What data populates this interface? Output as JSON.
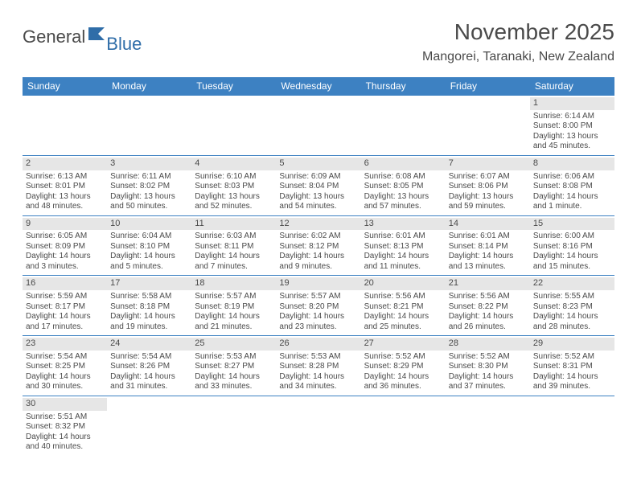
{
  "logo": {
    "text1": "General",
    "text2": "Blue"
  },
  "title": "November 2025",
  "location": "Mangorei, Taranaki, New Zealand",
  "colors": {
    "header_bg": "#3d81c2",
    "header_text": "#ffffff",
    "daynum_bg": "#e6e6e6",
    "text": "#4a4a4a",
    "logo_blue": "#2f6da8",
    "rule": "#3d81c2"
  },
  "day_headers": [
    "Sunday",
    "Monday",
    "Tuesday",
    "Wednesday",
    "Thursday",
    "Friday",
    "Saturday"
  ],
  "weeks": [
    [
      null,
      null,
      null,
      null,
      null,
      null,
      {
        "n": "1",
        "sr": "6:14 AM",
        "ss": "8:00 PM",
        "dl1": "13 hours",
        "dl2": "and 45 minutes."
      }
    ],
    [
      {
        "n": "2",
        "sr": "6:13 AM",
        "ss": "8:01 PM",
        "dl1": "13 hours",
        "dl2": "and 48 minutes."
      },
      {
        "n": "3",
        "sr": "6:11 AM",
        "ss": "8:02 PM",
        "dl1": "13 hours",
        "dl2": "and 50 minutes."
      },
      {
        "n": "4",
        "sr": "6:10 AM",
        "ss": "8:03 PM",
        "dl1": "13 hours",
        "dl2": "and 52 minutes."
      },
      {
        "n": "5",
        "sr": "6:09 AM",
        "ss": "8:04 PM",
        "dl1": "13 hours",
        "dl2": "and 54 minutes."
      },
      {
        "n": "6",
        "sr": "6:08 AM",
        "ss": "8:05 PM",
        "dl1": "13 hours",
        "dl2": "and 57 minutes."
      },
      {
        "n": "7",
        "sr": "6:07 AM",
        "ss": "8:06 PM",
        "dl1": "13 hours",
        "dl2": "and 59 minutes."
      },
      {
        "n": "8",
        "sr": "6:06 AM",
        "ss": "8:08 PM",
        "dl1": "14 hours",
        "dl2": "and 1 minute."
      }
    ],
    [
      {
        "n": "9",
        "sr": "6:05 AM",
        "ss": "8:09 PM",
        "dl1": "14 hours",
        "dl2": "and 3 minutes."
      },
      {
        "n": "10",
        "sr": "6:04 AM",
        "ss": "8:10 PM",
        "dl1": "14 hours",
        "dl2": "and 5 minutes."
      },
      {
        "n": "11",
        "sr": "6:03 AM",
        "ss": "8:11 PM",
        "dl1": "14 hours",
        "dl2": "and 7 minutes."
      },
      {
        "n": "12",
        "sr": "6:02 AM",
        "ss": "8:12 PM",
        "dl1": "14 hours",
        "dl2": "and 9 minutes."
      },
      {
        "n": "13",
        "sr": "6:01 AM",
        "ss": "8:13 PM",
        "dl1": "14 hours",
        "dl2": "and 11 minutes."
      },
      {
        "n": "14",
        "sr": "6:01 AM",
        "ss": "8:14 PM",
        "dl1": "14 hours",
        "dl2": "and 13 minutes."
      },
      {
        "n": "15",
        "sr": "6:00 AM",
        "ss": "8:16 PM",
        "dl1": "14 hours",
        "dl2": "and 15 minutes."
      }
    ],
    [
      {
        "n": "16",
        "sr": "5:59 AM",
        "ss": "8:17 PM",
        "dl1": "14 hours",
        "dl2": "and 17 minutes."
      },
      {
        "n": "17",
        "sr": "5:58 AM",
        "ss": "8:18 PM",
        "dl1": "14 hours",
        "dl2": "and 19 minutes."
      },
      {
        "n": "18",
        "sr": "5:57 AM",
        "ss": "8:19 PM",
        "dl1": "14 hours",
        "dl2": "and 21 minutes."
      },
      {
        "n": "19",
        "sr": "5:57 AM",
        "ss": "8:20 PM",
        "dl1": "14 hours",
        "dl2": "and 23 minutes."
      },
      {
        "n": "20",
        "sr": "5:56 AM",
        "ss": "8:21 PM",
        "dl1": "14 hours",
        "dl2": "and 25 minutes."
      },
      {
        "n": "21",
        "sr": "5:56 AM",
        "ss": "8:22 PM",
        "dl1": "14 hours",
        "dl2": "and 26 minutes."
      },
      {
        "n": "22",
        "sr": "5:55 AM",
        "ss": "8:23 PM",
        "dl1": "14 hours",
        "dl2": "and 28 minutes."
      }
    ],
    [
      {
        "n": "23",
        "sr": "5:54 AM",
        "ss": "8:25 PM",
        "dl1": "14 hours",
        "dl2": "and 30 minutes."
      },
      {
        "n": "24",
        "sr": "5:54 AM",
        "ss": "8:26 PM",
        "dl1": "14 hours",
        "dl2": "and 31 minutes."
      },
      {
        "n": "25",
        "sr": "5:53 AM",
        "ss": "8:27 PM",
        "dl1": "14 hours",
        "dl2": "and 33 minutes."
      },
      {
        "n": "26",
        "sr": "5:53 AM",
        "ss": "8:28 PM",
        "dl1": "14 hours",
        "dl2": "and 34 minutes."
      },
      {
        "n": "27",
        "sr": "5:52 AM",
        "ss": "8:29 PM",
        "dl1": "14 hours",
        "dl2": "and 36 minutes."
      },
      {
        "n": "28",
        "sr": "5:52 AM",
        "ss": "8:30 PM",
        "dl1": "14 hours",
        "dl2": "and 37 minutes."
      },
      {
        "n": "29",
        "sr": "5:52 AM",
        "ss": "8:31 PM",
        "dl1": "14 hours",
        "dl2": "and 39 minutes."
      }
    ],
    [
      {
        "n": "30",
        "sr": "5:51 AM",
        "ss": "8:32 PM",
        "dl1": "14 hours",
        "dl2": "and 40 minutes."
      },
      null,
      null,
      null,
      null,
      null,
      null
    ]
  ],
  "labels": {
    "sunrise": "Sunrise: ",
    "sunset": "Sunset: ",
    "daylight": "Daylight: "
  }
}
